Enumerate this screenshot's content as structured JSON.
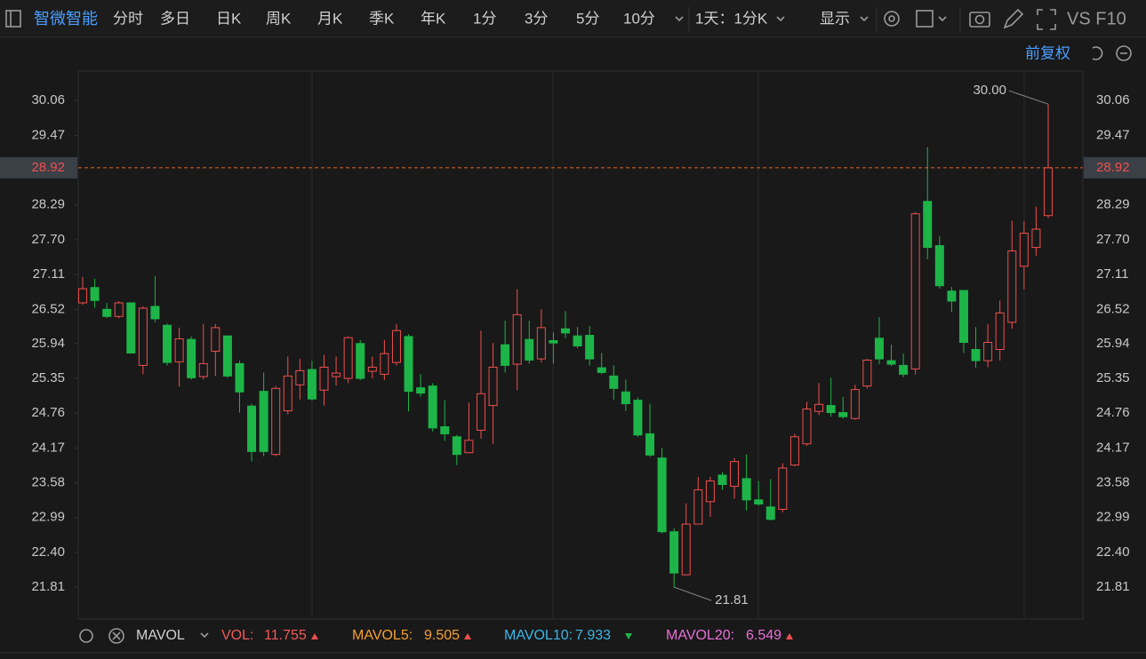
{
  "toolbar": {
    "symbol": "智微智能",
    "tabs": [
      "分时",
      "多日",
      "日K",
      "周K",
      "月K",
      "季K",
      "年K",
      "1分",
      "3分",
      "5分",
      "10分"
    ],
    "active_tab": 2,
    "period": "1天：1分K",
    "display": "显示",
    "compare": "VS F10"
  },
  "adjust": "前复权",
  "chart_data": {
    "type": "candlestick",
    "open": [
      26.63,
      26.89,
      26.52,
      26.4,
      26.63,
      25.57,
      26.57,
      26.25,
      25.63,
      26.01,
      25.38,
      25.81,
      26.07,
      25.6,
      24.88,
      25.13,
      24.06,
      24.8,
      25.24,
      25.5,
      25.15,
      25.38,
      25.35,
      25.94,
      25.47,
      25.42,
      25.62,
      26.06,
      25.19,
      25.22,
      24.53,
      24.36,
      24.09,
      24.47,
      24.89,
      25.92,
      25.59,
      26.01,
      25.68,
      25.99,
      26.19,
      26.07,
      26.08,
      25.53,
      25.39,
      25.12,
      24.98,
      24.41,
      24.0,
      22.75,
      22.02,
      22.88,
      23.26,
      23.71,
      23.52,
      23.65,
      23.29,
      23.17,
      23.13,
      23.88,
      24.24,
      24.79,
      24.89,
      24.77,
      24.67,
      25.22,
      26.03,
      25.65,
      25.57,
      25.51,
      28.35,
      27.6,
      26.83,
      26.84,
      25.84,
      25.65,
      25.84,
      26.3,
      27.25,
      27.57,
      28.11
    ],
    "high": [
      27.07,
      27.04,
      26.63,
      26.66,
      26.63,
      26.57,
      27.08,
      26.28,
      26.21,
      26.06,
      26.27,
      26.27,
      26.07,
      25.65,
      24.92,
      25.45,
      25.22,
      25.72,
      25.68,
      25.65,
      25.75,
      25.72,
      26.06,
      26.0,
      25.72,
      26.0,
      26.27,
      26.1,
      25.42,
      25.27,
      24.98,
      24.39,
      24.94,
      26.16,
      25.95,
      26.33,
      26.86,
      26.33,
      26.52,
      26.13,
      26.49,
      26.22,
      26.24,
      25.78,
      25.57,
      25.33,
      25.03,
      24.92,
      24.17,
      22.81,
      23.23,
      23.68,
      23.68,
      23.76,
      24.0,
      24.06,
      23.61,
      23.64,
      23.91,
      24.41,
      24.95,
      25.27,
      25.36,
      25.04,
      25.24,
      25.68,
      26.39,
      25.92,
      25.77,
      28.17,
      29.27,
      27.76,
      26.9,
      26.84,
      26.22,
      26.27,
      26.67,
      28.02,
      28.02,
      28.26,
      30.0
    ],
    "low": [
      26.6,
      26.55,
      26.37,
      26.37,
      25.77,
      25.42,
      26.3,
      25.57,
      25.21,
      25.33,
      25.33,
      25.39,
      25.36,
      24.77,
      23.94,
      24.03,
      24.03,
      24.74,
      24.99,
      24.97,
      24.89,
      25.23,
      25.27,
      25.32,
      25.35,
      25.32,
      25.57,
      24.79,
      25.04,
      24.45,
      24.29,
      23.88,
      24.08,
      24.33,
      24.24,
      25.45,
      25.15,
      25.6,
      25.62,
      25.6,
      26.03,
      25.86,
      25.57,
      25.42,
      24.99,
      24.8,
      24.36,
      24.02,
      22.72,
      21.81,
      22.02,
      22.88,
      23.0,
      23.46,
      23.31,
      23.11,
      23.19,
      22.94,
      23.08,
      23.86,
      24.21,
      24.73,
      24.7,
      24.67,
      24.65,
      25.18,
      25.59,
      25.56,
      25.37,
      25.42,
      27.37,
      26.87,
      26.48,
      25.78,
      25.53,
      25.54,
      25.65,
      26.19,
      26.86,
      27.43,
      28.07
    ],
    "close": [
      26.87,
      26.67,
      26.4,
      26.63,
      25.78,
      26.54,
      26.36,
      25.62,
      26.02,
      25.36,
      25.6,
      26.21,
      25.39,
      25.12,
      24.11,
      24.11,
      25.18,
      25.39,
      25.48,
      25.0,
      25.54,
      25.44,
      26.04,
      25.35,
      25.54,
      25.77,
      26.16,
      25.13,
      25.1,
      24.51,
      24.41,
      24.06,
      24.3,
      25.09,
      25.54,
      25.57,
      26.43,
      25.66,
      26.21,
      25.95,
      26.12,
      25.9,
      25.68,
      25.45,
      25.18,
      24.92,
      24.39,
      24.05,
      22.75,
      22.05,
      22.88,
      23.46,
      23.61,
      23.55,
      23.94,
      23.29,
      23.22,
      22.96,
      23.83,
      24.36,
      24.83,
      24.91,
      24.77,
      24.7,
      25.16,
      25.66,
      25.68,
      25.59,
      25.42,
      28.14,
      27.57,
      26.92,
      26.66,
      25.96,
      25.65,
      25.96,
      26.46,
      27.51,
      27.81,
      27.88,
      28.92
    ],
    "colors": {
      "up": "#f04f4f",
      "down": "#1db548"
    },
    "ylim": [
      21.27,
      30.56
    ],
    "yticks": [
      30.06,
      29.47,
      28.29,
      {
        "value": 27.7,
        "label": "27.70"
      },
      27.11,
      26.52,
      25.94,
      25.35,
      24.76,
      24.17,
      23.58,
      22.99,
      {
        "value": 22.4,
        "label": "22.40"
      },
      21.81
    ],
    "last_price": 28.92,
    "extremes": [
      {
        "value": 30,
        "label": "30.00"
      },
      21.81
    ]
  },
  "indicator_bar": {
    "name": "MAVOL",
    "items": [
      {
        "name": "VOL:",
        "value": 11.755,
        "color": "#f05a5a",
        "trend": "up"
      },
      {
        "name": "MAVOL5:",
        "value": 9.505,
        "color": "#f5a030",
        "trend": "up"
      },
      {
        "name": "MAVOL10:",
        "value": 7.933,
        "color": "#3cb6e8",
        "trend": "down"
      },
      {
        "name": "MAVOL20:",
        "value": 6.549,
        "color": "#e870d8",
        "trend": "up"
      }
    ]
  }
}
